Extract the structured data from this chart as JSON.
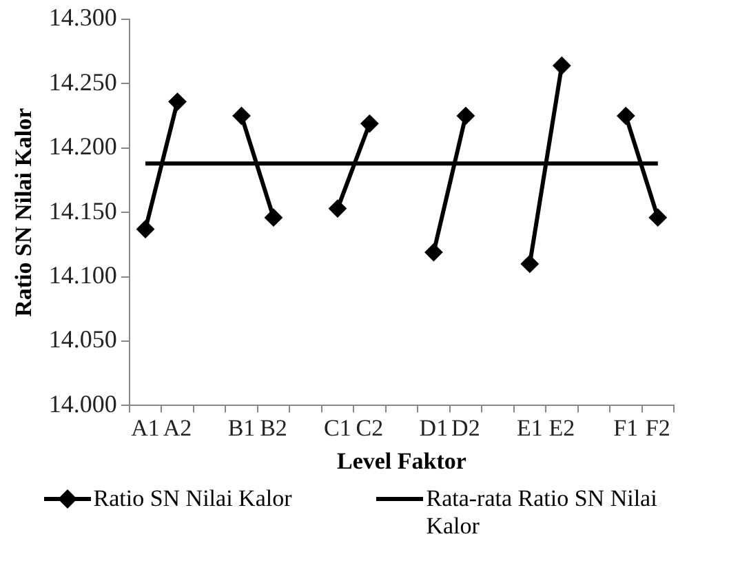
{
  "chart_data": {
    "type": "line",
    "xlabel": "Level Faktor",
    "ylabel": "Ratio SN Nilai Kalor",
    "categories": [
      "A1",
      "A2",
      null,
      "B1",
      "B2",
      null,
      "C1",
      "C2",
      null,
      "D1",
      "D2",
      null,
      "E1",
      "E2",
      null,
      "F1",
      "F2"
    ],
    "series": [
      {
        "name": "Ratio SN Nilai Kalor",
        "color": "#000000",
        "marker": "diamond",
        "values": [
          14.137,
          14.236,
          null,
          14.225,
          14.146,
          null,
          14.153,
          14.219,
          null,
          14.119,
          14.225,
          null,
          14.11,
          14.264,
          null,
          14.225,
          14.146
        ]
      },
      {
        "name": "Rata-rata Ratio SN Nilai Kalor",
        "color": "#000000",
        "marker": "none",
        "values": [
          14.188,
          14.188,
          14.188,
          14.188,
          14.188,
          14.188,
          14.188,
          14.188,
          14.188,
          14.188,
          14.188,
          14.188,
          14.188,
          14.188,
          14.188,
          14.188,
          14.188
        ]
      }
    ],
    "ylim": [
      14.0,
      14.3
    ],
    "yticks": [
      {
        "value": 14.0,
        "label": "14.000"
      },
      {
        "value": 14.05,
        "label": "14.050"
      },
      {
        "value": 14.1,
        "label": "14.100"
      },
      {
        "value": 14.15,
        "label": "14.150"
      },
      {
        "value": 14.2,
        "label": "14.200"
      },
      {
        "value": 14.25,
        "label": "14.250"
      },
      {
        "value": 14.3,
        "label": "14.300"
      }
    ],
    "grid": false,
    "legend": "bottom"
  }
}
